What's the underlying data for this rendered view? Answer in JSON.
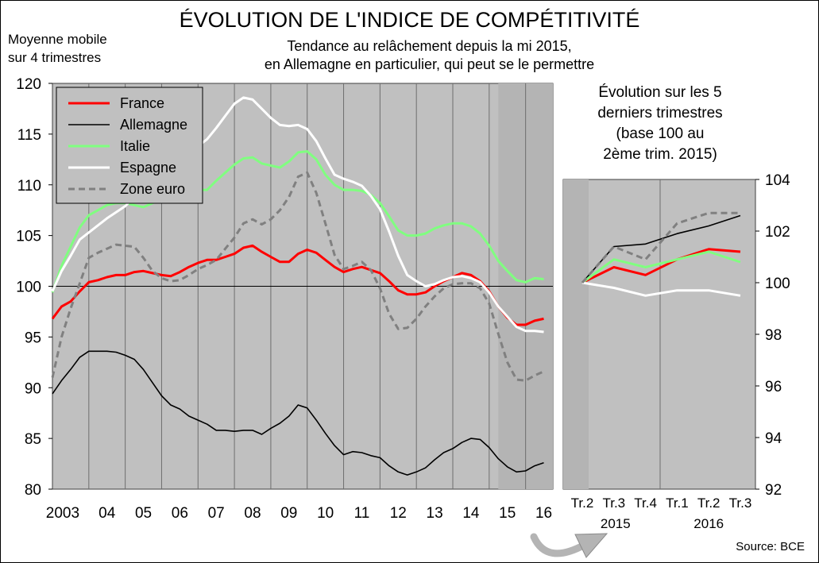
{
  "title": "ÉVOLUTION DE L'INDICE DE COMPÉTITIVITÉ",
  "subtitle_line1": "Tendance au relâchement depuis la mi 2015,",
  "subtitle_line2": "en Allemagne en particulier, qui peut se le permettre",
  "unit_label_line1": "Moyenne mobile",
  "unit_label_line2": "sur 4 trimestres",
  "side_title_line1": "Évolution sur les 5",
  "side_title_line2": "derniers trimestres",
  "side_title_line3": "(base 100 au",
  "side_title_line4": "2ème trim. 2015)",
  "source": "Source: BCE",
  "colors": {
    "France": "#ff0000",
    "Allemagne": "#000000",
    "Italie": "#80ff80",
    "Espagne": "#ffffff",
    "Zone euro": "#808080",
    "plot_bg": "#c0c0c0",
    "shade_bg": "#b4b4b4"
  },
  "chart_data": [
    {
      "type": "line",
      "x_tick_labels": [
        "2003",
        "04",
        "05",
        "06",
        "07",
        "08",
        "09",
        "10",
        "11",
        "12",
        "13",
        "14",
        "15",
        "16"
      ],
      "xlim": [
        2003.0,
        2016.75
      ],
      "ylim": [
        80,
        120
      ],
      "y_ticks": [
        80,
        85,
        90,
        95,
        100,
        105,
        110,
        115,
        120
      ],
      "reference_line": 100,
      "shaded_period": [
        2015.25,
        2016.75
      ],
      "legend_position": "top-left",
      "series": [
        {
          "name": "France",
          "style": "solid",
          "x": [
            2003.0,
            2003.25,
            2003.5,
            2003.75,
            2004.0,
            2004.25,
            2004.5,
            2004.75,
            2005.0,
            2005.25,
            2005.5,
            2005.75,
            2006.0,
            2006.25,
            2006.5,
            2006.75,
            2007.0,
            2007.25,
            2007.5,
            2007.75,
            2008.0,
            2008.25,
            2008.5,
            2008.75,
            2009.0,
            2009.25,
            2009.5,
            2009.75,
            2010.0,
            2010.25,
            2010.5,
            2010.75,
            2011.0,
            2011.25,
            2011.5,
            2011.75,
            2012.0,
            2012.25,
            2012.5,
            2012.75,
            2013.0,
            2013.25,
            2013.5,
            2013.75,
            2014.0,
            2014.25,
            2014.5,
            2014.75,
            2015.0,
            2015.25,
            2015.5,
            2015.75,
            2016.0,
            2016.25,
            2016.5
          ],
          "y": [
            96.8,
            98.0,
            98.5,
            99.5,
            100.4,
            100.6,
            100.9,
            101.1,
            101.1,
            101.4,
            101.5,
            101.3,
            101.1,
            101.0,
            101.4,
            101.9,
            102.3,
            102.6,
            102.6,
            102.9,
            103.2,
            103.8,
            104.0,
            103.4,
            102.9,
            102.4,
            102.4,
            103.2,
            103.6,
            103.3,
            102.6,
            101.9,
            101.4,
            101.7,
            101.9,
            101.6,
            101.3,
            100.5,
            99.6,
            99.2,
            99.2,
            99.4,
            100.0,
            100.5,
            100.9,
            101.3,
            101.1,
            100.5,
            99.5,
            98.0,
            96.9,
            96.2,
            96.2,
            96.6,
            96.8
          ]
        },
        {
          "name": "Allemagne",
          "style": "solid",
          "x": [
            2003.0,
            2003.25,
            2003.5,
            2003.75,
            2004.0,
            2004.25,
            2004.5,
            2004.75,
            2005.0,
            2005.25,
            2005.5,
            2005.75,
            2006.0,
            2006.25,
            2006.5,
            2006.75,
            2007.0,
            2007.25,
            2007.5,
            2007.75,
            2008.0,
            2008.25,
            2008.5,
            2008.75,
            2009.0,
            2009.25,
            2009.5,
            2009.75,
            2010.0,
            2010.25,
            2010.5,
            2010.75,
            2011.0,
            2011.25,
            2011.5,
            2011.75,
            2012.0,
            2012.25,
            2012.5,
            2012.75,
            2013.0,
            2013.25,
            2013.5,
            2013.75,
            2014.0,
            2014.25,
            2014.5,
            2014.75,
            2015.0,
            2015.25,
            2015.5,
            2015.75,
            2016.0,
            2016.25,
            2016.5
          ],
          "y": [
            89.4,
            90.7,
            91.8,
            93.0,
            93.6,
            93.6,
            93.6,
            93.5,
            93.2,
            92.8,
            91.8,
            90.5,
            89.2,
            88.3,
            87.9,
            87.2,
            86.8,
            86.4,
            85.8,
            85.8,
            85.7,
            85.8,
            85.8,
            85.4,
            86.0,
            86.5,
            87.2,
            88.3,
            88.0,
            86.8,
            85.5,
            84.3,
            83.4,
            83.7,
            83.6,
            83.3,
            83.1,
            82.3,
            81.7,
            81.4,
            81.7,
            82.1,
            82.9,
            83.6,
            84.0,
            84.6,
            85.0,
            84.9,
            84.1,
            83.0,
            82.2,
            81.7,
            81.8,
            82.3,
            82.6
          ]
        },
        {
          "name": "Italie",
          "style": "solid",
          "x": [
            2003.0,
            2003.25,
            2003.5,
            2003.75,
            2004.0,
            2004.25,
            2004.5,
            2004.75,
            2005.0,
            2005.25,
            2005.5,
            2005.75,
            2006.0,
            2006.25,
            2006.5,
            2006.75,
            2007.0,
            2007.25,
            2007.5,
            2007.75,
            2008.0,
            2008.25,
            2008.5,
            2008.75,
            2009.0,
            2009.25,
            2009.5,
            2009.75,
            2010.0,
            2010.25,
            2010.5,
            2010.75,
            2011.0,
            2011.25,
            2011.5,
            2011.75,
            2012.0,
            2012.25,
            2012.5,
            2012.75,
            2013.0,
            2013.25,
            2013.5,
            2013.75,
            2014.0,
            2014.25,
            2014.5,
            2014.75,
            2015.0,
            2015.25,
            2015.5,
            2015.75,
            2016.0,
            2016.25,
            2016.5
          ],
          "y": [
            99.4,
            102.0,
            103.9,
            105.8,
            107.0,
            107.5,
            108.0,
            108.2,
            108.2,
            108.0,
            107.8,
            108.2,
            108.5,
            108.8,
            109.0,
            109.3,
            109.5,
            109.5,
            110.4,
            111.2,
            112.0,
            112.6,
            112.7,
            112.1,
            111.9,
            111.7,
            112.3,
            113.2,
            113.3,
            112.5,
            111.0,
            110.0,
            109.5,
            109.5,
            109.4,
            109.0,
            108.2,
            106.9,
            105.5,
            105.0,
            105.0,
            105.2,
            105.7,
            106.0,
            106.2,
            106.2,
            105.9,
            105.2,
            104.0,
            102.5,
            101.5,
            100.6,
            100.4,
            100.8,
            100.7
          ]
        },
        {
          "name": "Espagne",
          "style": "solid",
          "x": [
            2003.0,
            2003.25,
            2003.5,
            2003.75,
            2004.0,
            2004.25,
            2004.5,
            2004.75,
            2005.0,
            2005.25,
            2005.5,
            2005.75,
            2006.0,
            2006.25,
            2006.5,
            2006.75,
            2007.0,
            2007.25,
            2007.5,
            2007.75,
            2008.0,
            2008.25,
            2008.5,
            2008.75,
            2009.0,
            2009.25,
            2009.5,
            2009.75,
            2010.0,
            2010.25,
            2010.5,
            2010.75,
            2011.0,
            2011.25,
            2011.5,
            2011.75,
            2012.0,
            2012.25,
            2012.5,
            2012.75,
            2013.0,
            2013.25,
            2013.5,
            2013.75,
            2014.0,
            2014.25,
            2014.5,
            2014.75,
            2015.0,
            2015.25,
            2015.5,
            2015.75,
            2016.0,
            2016.25,
            2016.5
          ],
          "y": [
            99.5,
            101.5,
            103.0,
            104.6,
            105.3,
            106.0,
            106.7,
            107.3,
            107.9,
            108.8,
            109.6,
            110.3,
            111.0,
            111.7,
            112.3,
            113.0,
            113.8,
            114.5,
            115.6,
            116.8,
            118.0,
            118.6,
            118.4,
            117.5,
            116.6,
            115.9,
            115.8,
            115.9,
            115.5,
            114.3,
            112.6,
            111.0,
            110.6,
            110.3,
            109.9,
            108.9,
            107.6,
            105.4,
            103.0,
            101.1,
            100.5,
            100.0,
            100.2,
            100.6,
            100.9,
            101.0,
            100.8,
            100.4,
            99.4,
            98.0,
            97.0,
            96.0,
            95.6,
            95.6,
            95.5
          ]
        },
        {
          "name": "Zone euro",
          "style": "dashed",
          "x": [
            2003.0,
            2003.25,
            2003.5,
            2003.75,
            2004.0,
            2004.25,
            2004.5,
            2004.75,
            2005.0,
            2005.25,
            2005.5,
            2005.75,
            2006.0,
            2006.25,
            2006.5,
            2006.75,
            2007.0,
            2007.25,
            2007.5,
            2007.75,
            2008.0,
            2008.25,
            2008.5,
            2008.75,
            2009.0,
            2009.25,
            2009.5,
            2009.75,
            2010.0,
            2010.25,
            2010.5,
            2010.75,
            2011.0,
            2011.25,
            2011.5,
            2011.75,
            2012.0,
            2012.25,
            2012.5,
            2012.75,
            2013.0,
            2013.25,
            2013.5,
            2013.75,
            2014.0,
            2014.25,
            2014.5,
            2014.75,
            2015.0,
            2015.25,
            2015.5,
            2015.75,
            2016.0,
            2016.25,
            2016.5
          ],
          "y": [
            91.0,
            95.0,
            97.8,
            100.3,
            102.8,
            103.3,
            103.7,
            104.1,
            104.0,
            103.9,
            102.8,
            101.5,
            100.8,
            100.5,
            100.6,
            101.1,
            101.7,
            102.1,
            102.6,
            103.7,
            104.8,
            106.2,
            106.6,
            106.1,
            106.6,
            107.5,
            108.8,
            110.8,
            111.2,
            109.2,
            106.2,
            103.1,
            101.7,
            102.0,
            102.4,
            101.6,
            99.8,
            97.3,
            95.8,
            95.9,
            96.8,
            98.0,
            99.0,
            99.8,
            100.2,
            100.3,
            100.3,
            99.8,
            98.3,
            95.3,
            92.5,
            90.8,
            90.7,
            91.2,
            91.6
          ]
        }
      ]
    },
    {
      "type": "line",
      "categories": [
        "Tr.2",
        "Tr.3",
        "Tr.4",
        "Tr.1",
        "Tr.2",
        "Tr.3"
      ],
      "year_labels": [
        "2015",
        "2016"
      ],
      "ylim": [
        92,
        104
      ],
      "y_ticks": [
        92,
        94,
        96,
        98,
        100,
        102,
        104
      ],
      "y_axis_position": "right",
      "series": [
        {
          "name": "France",
          "style": "solid",
          "values": [
            100.0,
            100.6,
            100.3,
            100.9,
            101.3,
            101.2
          ]
        },
        {
          "name": "Allemagne",
          "style": "solid",
          "values": [
            100.0,
            101.4,
            101.5,
            101.9,
            102.2,
            102.6
          ]
        },
        {
          "name": "Italie",
          "style": "solid",
          "values": [
            100.0,
            100.9,
            100.6,
            100.9,
            101.2,
            100.8
          ]
        },
        {
          "name": "Espagne",
          "style": "solid",
          "values": [
            100.0,
            99.8,
            99.5,
            99.7,
            99.7,
            99.5
          ]
        },
        {
          "name": "Zone euro",
          "style": "dashed",
          "values": [
            100.0,
            101.4,
            100.9,
            102.3,
            102.7,
            102.7
          ]
        }
      ]
    }
  ]
}
